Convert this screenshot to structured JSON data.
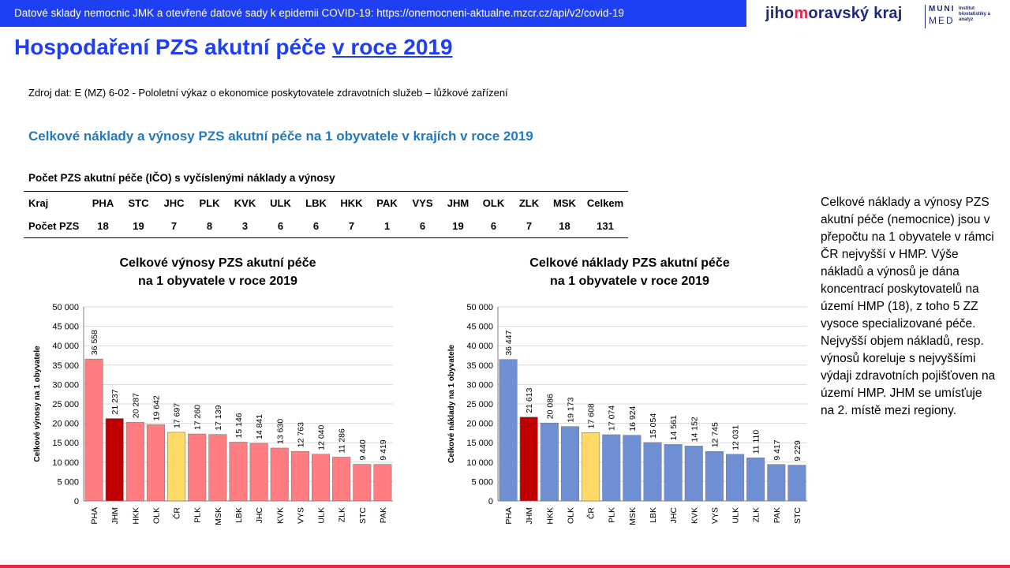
{
  "header": {
    "bar_text": "Datové sklady nemocnic JMK a otevřené datové sady k epidemii COVID-19: https://onemocneni-aktualne.mzcr.cz/api/v2/covid-19",
    "logo_jmk_pre": "jiho",
    "logo_jmk_accent": "m",
    "logo_jmk_post": "oravský kraj",
    "logo_muni": "MUNI",
    "logo_med": "MED",
    "logo_inst": "Institut biostatistiky a analýz"
  },
  "page": {
    "title_main": "Hospodaření PZS akutní péče ",
    "title_year": "v roce 2019",
    "source": "Zdroj dat: E (MZ) 6-02 - Pololetní výkaz o ekonomice poskytovatele zdravotních služeb – lůžkové zařízení",
    "subtitle": "Celkové náklady  a výnosy PZS akutní péče na 1 obyvatele v krajích  v roce 2019"
  },
  "table": {
    "caption": "Počet PZS akutní péče (IČO) s vyčíslenými náklady a výnosy",
    "row_labels": [
      "Kraj",
      "Počet PZS"
    ],
    "columns": [
      "PHA",
      "STC",
      "JHC",
      "PLK",
      "KVK",
      "ULK",
      "LBK",
      "HKK",
      "PAK",
      "VYS",
      "JHM",
      "OLK",
      "ZLK",
      "MSK",
      "Celkem"
    ],
    "values": [
      "18",
      "19",
      "7",
      "8",
      "3",
      "6",
      "6",
      "7",
      "1",
      "6",
      "19",
      "6",
      "7",
      "18",
      "131"
    ]
  },
  "colors": {
    "header_blue": "#1f3ff2",
    "subtitle_blue": "#1f7ac2",
    "income_bar": "#ff7c80",
    "cost_bar": "#6f8fd4",
    "highlight_jhm": "#c00000",
    "highlight_cr": "#ffd966",
    "accent_red": "#e3264b"
  },
  "side_text": "Celkové náklady a výnosy PZS akutní péče (nemocnice) jsou v přepočtu na 1 obyvatele v rámci ČR nejvyšší v HMP. Výše nákladů a výnosů je dána koncentrací poskytovatelů na území HMP (18), z toho 5 ZZ vysoce specializované péče. Nejvyšší objem nákladů, resp. výnosů koreluje s nejvyššími výdaji zdravotních pojišťoven na území HMP. JHM se umísťuje na 2. místě mezi regiony.",
  "chart_data": [
    {
      "type": "bar",
      "title_line1": "Celkové výnosy PZS akutní péče",
      "title_line2": "na 1 obyvatele v roce 2019",
      "ylabel": "Celkové výnosy na 1 obyvatele",
      "categories": [
        "PHA",
        "JHM",
        "HKK",
        "OLK",
        "ČR",
        "PLK",
        "MSK",
        "LBK",
        "JHC",
        "KVK",
        "VYS",
        "ULK",
        "ZLK",
        "STC",
        "PAK"
      ],
      "values": [
        36558,
        21237,
        20287,
        19642,
        17697,
        17260,
        17139,
        15146,
        14841,
        13630,
        12763,
        12040,
        11286,
        9440,
        9419
      ],
      "value_labels": [
        "36 558",
        "21 237",
        "20 287",
        "19 642",
        "17 697",
        "17 260",
        "17 139",
        "15 146",
        "14 841",
        "13 630",
        "12 763",
        "12 040",
        "11 286",
        "9 440",
        "9 419"
      ],
      "ylim": [
        0,
        50000
      ],
      "yticks": [
        "0",
        "5 000",
        "10 000",
        "15 000",
        "20 000",
        "25 000",
        "30 000",
        "35 000",
        "40 000",
        "45 000",
        "50 000"
      ],
      "grid": true,
      "bar_color": "#ff7c80",
      "highlights": {
        "JHM": "#c00000",
        "ČR": "#ffd966"
      }
    },
    {
      "type": "bar",
      "title_line1": "Celkové náklady PZS akutní péče",
      "title_line2": "na 1 obyvatele v roce 2019",
      "ylabel": "Celkové náklady na 1 obyvatele",
      "categories": [
        "PHA",
        "JHM",
        "HKK",
        "OLK",
        "ČR",
        "PLK",
        "MSK",
        "LBK",
        "JHC",
        "KVK",
        "VYS",
        "ULK",
        "ZLK",
        "PAK",
        "STC"
      ],
      "values": [
        36447,
        21613,
        20086,
        19173,
        17608,
        17074,
        16924,
        15054,
        14561,
        14152,
        12745,
        12031,
        11110,
        9417,
        9229
      ],
      "value_labels": [
        "36 447",
        "21 613",
        "20 086",
        "19 173",
        "17 608",
        "17 074",
        "16 924",
        "15 054",
        "14 561",
        "14 152",
        "12 745",
        "12 031",
        "11 110",
        "9 417",
        "9 229"
      ],
      "ylim": [
        0,
        50000
      ],
      "yticks": [
        "0",
        "5 000",
        "10 000",
        "15 000",
        "20 000",
        "25 000",
        "30 000",
        "35 000",
        "40 000",
        "45 000",
        "50 000"
      ],
      "grid": true,
      "bar_color": "#6f8fd4",
      "highlights": {
        "JHM": "#c00000",
        "ČR": "#ffd966"
      }
    }
  ]
}
